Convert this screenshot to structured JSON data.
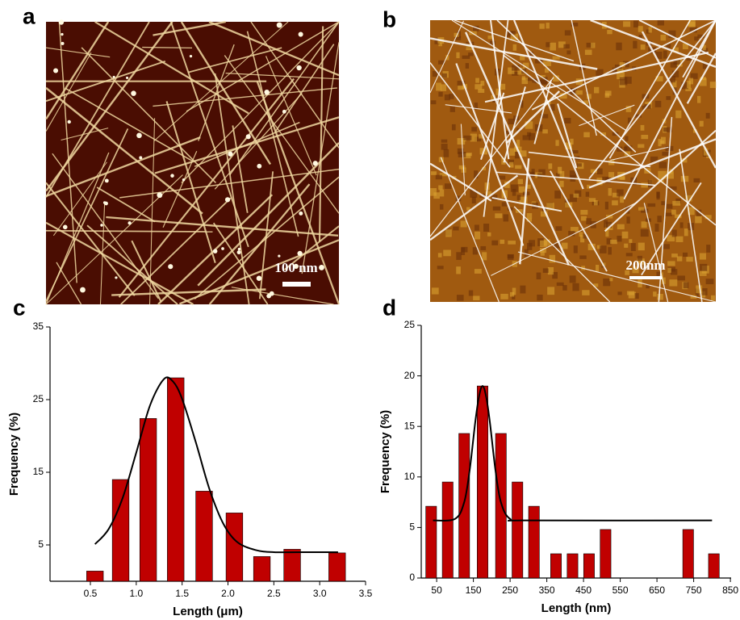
{
  "images": [
    {
      "label": "a",
      "scale_bar": "100 nm"
    },
    {
      "label": "b",
      "scale_bar": "200nm"
    }
  ],
  "chart_data": [
    {
      "type": "bar",
      "label": "c",
      "x_label": "Length (μm)",
      "y_label": "Frequency (%)",
      "color": "#c00000",
      "x": [
        0.55,
        0.83,
        1.13,
        1.43,
        1.74,
        2.07,
        2.37,
        2.7,
        3.19
      ],
      "values": [
        1.4,
        14,
        22.4,
        28,
        12.4,
        9.4,
        3.4,
        4.4,
        3.9
      ],
      "fit": {
        "x": [
          0.55,
          0.7,
          0.85,
          1.0,
          1.15,
          1.3,
          1.4,
          1.5,
          1.65,
          1.8,
          1.95,
          2.1,
          2.3,
          2.5,
          2.8,
          3.2
        ],
        "values": [
          5.1,
          7.2,
          11.4,
          17.7,
          24.2,
          27.8,
          27.5,
          25.1,
          19.1,
          12.6,
          7.9,
          5.4,
          4.3,
          4.0,
          4.0,
          4.0
        ]
      },
      "xlim": [
        0.06,
        3.5
      ],
      "ylim": [
        0,
        35
      ],
      "xticks": [
        0.5,
        {
          "value": 1,
          "label": "1.0"
        },
        1.5,
        {
          "value": 2,
          "label": "2.0"
        },
        2.5,
        {
          "value": 3,
          "label": "3.0"
        },
        3.5
      ],
      "yticks": [
        5,
        15,
        25,
        35
      ],
      "grid": false
    },
    {
      "type": "bar",
      "label": "d",
      "x_label": "Length (nm)",
      "y_label": "Frequency (%)",
      "color": "#c00000",
      "x": [
        35,
        80,
        125,
        175,
        225,
        270,
        315,
        375,
        420,
        465,
        510,
        735,
        805
      ],
      "values": [
        7.1,
        9.5,
        14.3,
        19,
        14.3,
        9.5,
        7.1,
        2.4,
        2.4,
        2.4,
        4.8,
        4.8,
        2.4
      ],
      "fit": {
        "x": [
          40,
          100,
          125,
          140,
          155,
          165,
          175,
          185,
          195,
          210,
          225,
          250,
          300,
          800
        ],
        "values": [
          5.7,
          5.85,
          7.5,
          10.7,
          15.4,
          17.9,
          19,
          17.9,
          15.4,
          10.7,
          7.5,
          5.85,
          5.7,
          5.7
        ]
      },
      "xlim": [
        8,
        852
      ],
      "ylim": [
        0,
        25
      ],
      "xticks": [
        50,
        150,
        250,
        350,
        450,
        550,
        650,
        750,
        850
      ],
      "yticks": [
        0,
        5,
        10,
        15,
        20,
        25
      ],
      "grid": false
    }
  ]
}
